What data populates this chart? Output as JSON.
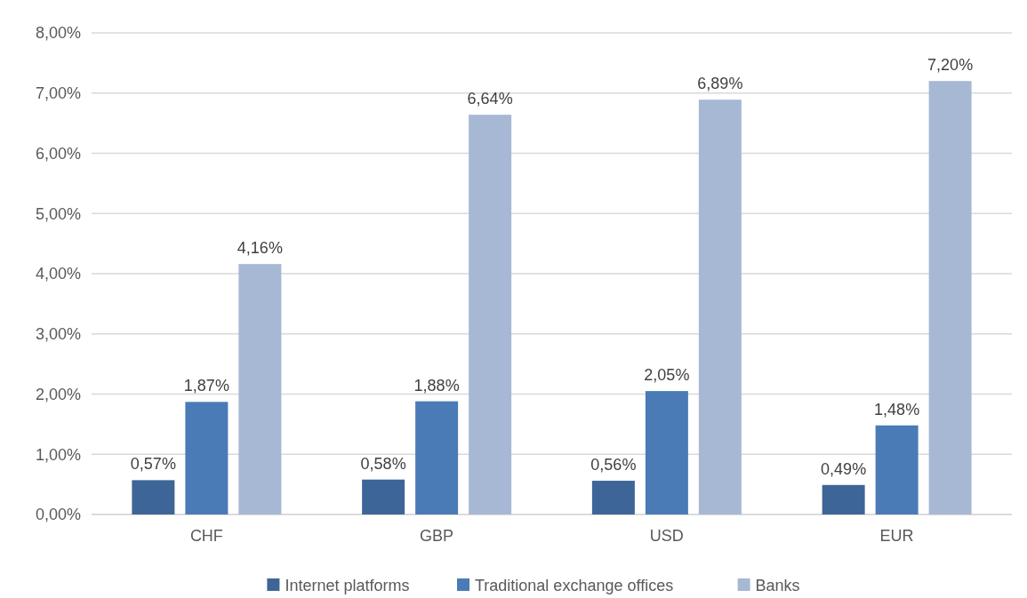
{
  "chart_data": {
    "type": "bar",
    "categories": [
      "CHF",
      "GBP",
      "USD",
      "EUR"
    ],
    "series": [
      {
        "name": "Internet platforms",
        "color": "#3e6597",
        "values": [
          0.57,
          0.58,
          0.56,
          0.49
        ],
        "value_labels": [
          "0,57%",
          "0,58%",
          "0,56%",
          "0,49%"
        ]
      },
      {
        "name": "Traditional exchange offices",
        "color": "#4a7bb6",
        "values": [
          1.87,
          1.88,
          2.05,
          1.48
        ],
        "value_labels": [
          "1,87%",
          "1,88%",
          "2,05%",
          "1,48%"
        ]
      },
      {
        "name": "Banks",
        "color": "#a7b8d4",
        "values": [
          4.16,
          6.64,
          6.89,
          7.2
        ],
        "value_labels": [
          "4,16%",
          "6,64%",
          "6,89%",
          "7,20%"
        ]
      }
    ],
    "ylim": [
      0,
      8
    ],
    "yticks": [
      {
        "value": 0,
        "label": "0,00%"
      },
      {
        "value": 1,
        "label": "1,00%"
      },
      {
        "value": 2,
        "label": "2,00%"
      },
      {
        "value": 3,
        "label": "3,00%"
      },
      {
        "value": 4,
        "label": "4,00%"
      },
      {
        "value": 5,
        "label": "5,00%"
      },
      {
        "value": 6,
        "label": "6,00%"
      },
      {
        "value": 7,
        "label": "7,00%"
      },
      {
        "value": 8,
        "label": "8,00%"
      }
    ],
    "grid": "y",
    "legend": "bottom"
  }
}
